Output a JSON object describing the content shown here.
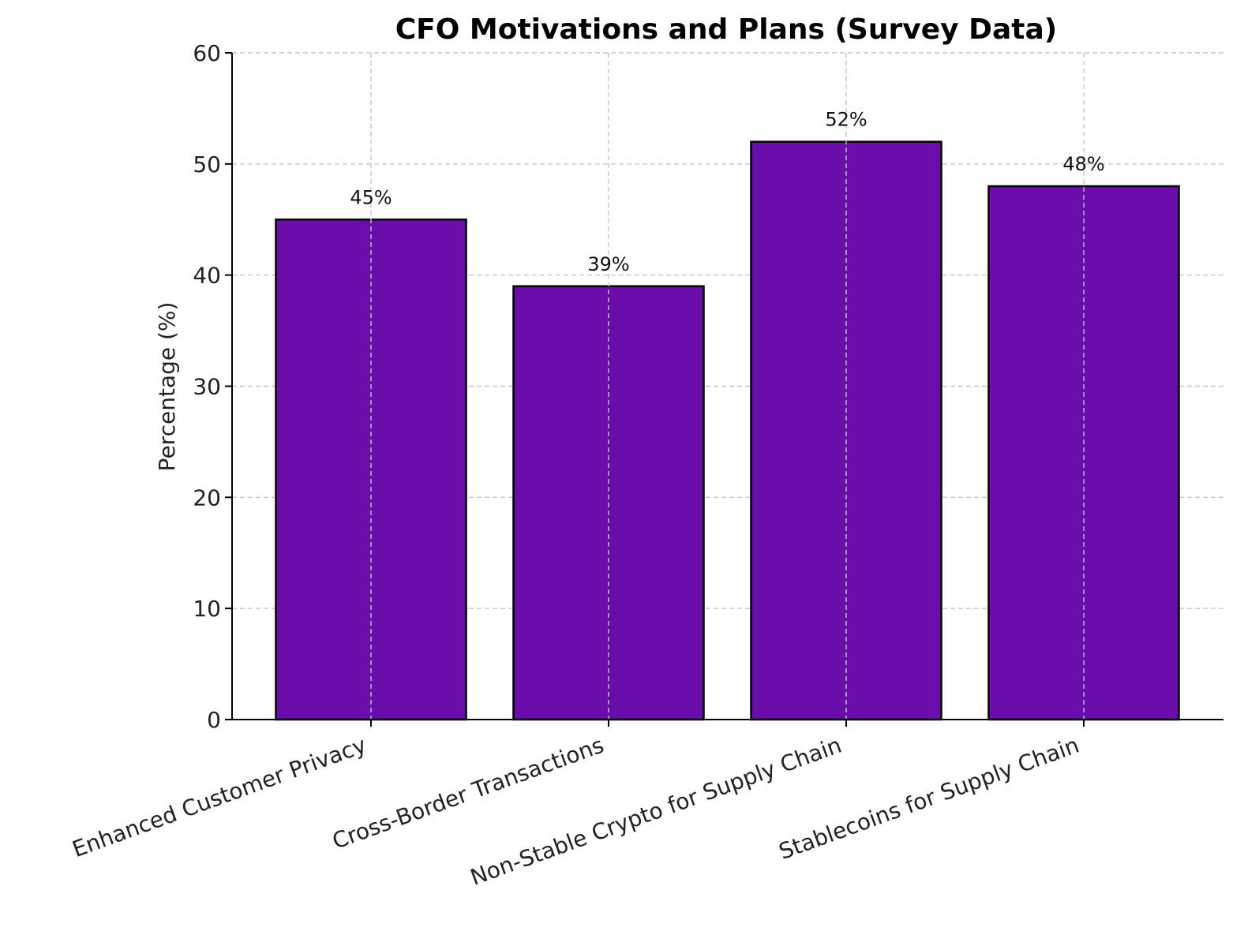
{
  "chart_data": {
    "type": "bar",
    "title": "CFO Motivations and Plans (Survey Data)",
    "xlabel": "",
    "ylabel": "Percentage (%)",
    "categories": [
      "Enhanced Customer Privacy",
      "Cross-Border Transactions",
      "Non-Stable Crypto for Supply Chain",
      "Stablecoins for Supply Chain"
    ],
    "values": [
      45,
      39,
      52,
      48
    ],
    "data_labels": [
      "45%",
      "39%",
      "52%",
      "48%"
    ],
    "ylim": [
      0,
      60
    ],
    "yticks": [
      0,
      10,
      20,
      30,
      40,
      50,
      60
    ],
    "grid": true,
    "bar_color": "#6a0dab",
    "edge_color": "#000000",
    "x_tick_rotation_deg": 20
  }
}
